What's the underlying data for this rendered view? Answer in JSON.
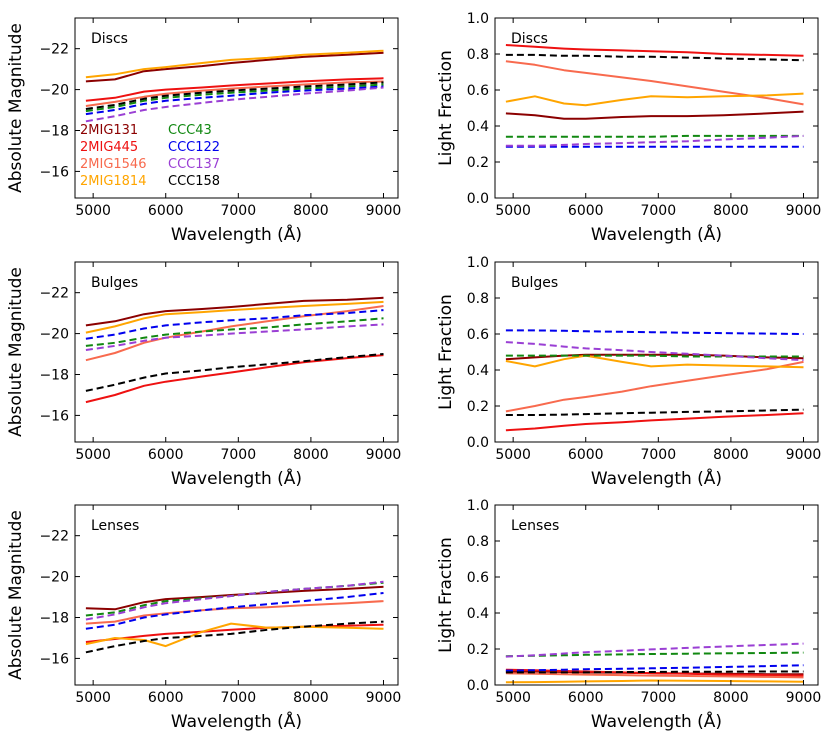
{
  "figure": {
    "xlabel": "Wavelength (Å)",
    "ylabel_magnitude": "Absolute Magnitude",
    "ylabel_fraction": "Light Fraction"
  },
  "legend": [
    {
      "name": "2MIG131",
      "color": "#8b0000",
      "dash": false
    },
    {
      "name": "2MIG445",
      "color": "#ee1111",
      "dash": false
    },
    {
      "name": "2MIG1546",
      "color": "#f86a4e",
      "dash": false
    },
    {
      "name": "2MIG1814",
      "color": "#ffa500",
      "dash": false
    },
    {
      "name": "CCC43",
      "color": "#118811",
      "dash": true
    },
    {
      "name": "CCC122",
      "color": "#0000ee",
      "dash": true
    },
    {
      "name": "CCC137",
      "color": "#9a3fd4",
      "dash": true
    },
    {
      "name": "CCC158",
      "color": "#000000",
      "dash": true
    }
  ],
  "chart_data": [
    {
      "id": "discs-magnitude",
      "type": "line",
      "title": "Discs",
      "xlabel": "Wavelength (Å)",
      "ylabel": "Absolute Magnitude",
      "xlim": [
        4750,
        9200
      ],
      "ylim": [
        -14.7,
        -23.5
      ],
      "y_inverted": true,
      "xticks": [
        5000,
        6000,
        7000,
        8000,
        9000
      ],
      "yticks": [
        -16,
        -18,
        -20,
        -22
      ],
      "x": [
        4900,
        5300,
        5700,
        6000,
        6500,
        6900,
        7400,
        7900,
        8500,
        9000
      ],
      "series": [
        {
          "name": "2MIG131",
          "values": [
            -20.4,
            -20.5,
            -20.9,
            -21.0,
            -21.15,
            -21.3,
            -21.45,
            -21.6,
            -21.7,
            -21.8
          ]
        },
        {
          "name": "2MIG445",
          "values": [
            -19.45,
            -19.6,
            -19.9,
            -20.0,
            -20.1,
            -20.2,
            -20.3,
            -20.4,
            -20.5,
            -20.55
          ]
        },
        {
          "name": "2MIG1546",
          "values": [
            -19.2,
            -19.4,
            -19.65,
            -19.8,
            -19.95,
            -20.05,
            -20.15,
            -20.25,
            -20.35,
            -20.4
          ]
        },
        {
          "name": "2MIG1814",
          "values": [
            -20.6,
            -20.75,
            -21.0,
            -21.1,
            -21.3,
            -21.45,
            -21.55,
            -21.7,
            -21.8,
            -21.9
          ]
        },
        {
          "name": "CCC43",
          "values": [
            -18.95,
            -19.15,
            -19.45,
            -19.6,
            -19.75,
            -19.85,
            -19.95,
            -20.05,
            -20.15,
            -20.25
          ]
        },
        {
          "name": "CCC122",
          "values": [
            -18.8,
            -19.0,
            -19.3,
            -19.45,
            -19.6,
            -19.7,
            -19.85,
            -19.95,
            -20.05,
            -20.15
          ]
        },
        {
          "name": "CCC137",
          "values": [
            -18.45,
            -18.7,
            -19.0,
            -19.15,
            -19.35,
            -19.5,
            -19.65,
            -19.8,
            -19.95,
            -20.1
          ]
        },
        {
          "name": "CCC158",
          "values": [
            -19.05,
            -19.25,
            -19.55,
            -19.7,
            -19.85,
            -19.95,
            -20.05,
            -20.15,
            -20.25,
            -20.35
          ]
        }
      ]
    },
    {
      "id": "discs-fraction",
      "type": "line",
      "title": "Discs",
      "xlabel": "Wavelength (Å)",
      "ylabel": "Light Fraction",
      "xlim": [
        4750,
        9200
      ],
      "ylim": [
        0,
        1.0
      ],
      "y_inverted": false,
      "xticks": [
        5000,
        6000,
        7000,
        8000,
        9000
      ],
      "yticks": [
        0.0,
        0.2,
        0.4,
        0.6,
        0.8,
        1.0
      ],
      "x": [
        4900,
        5300,
        5700,
        6000,
        6500,
        6900,
        7400,
        7900,
        8500,
        9000
      ],
      "series": [
        {
          "name": "2MIG131",
          "values": [
            0.47,
            0.46,
            0.44,
            0.44,
            0.45,
            0.455,
            0.455,
            0.46,
            0.47,
            0.48
          ]
        },
        {
          "name": "2MIG445",
          "values": [
            0.85,
            0.84,
            0.83,
            0.825,
            0.82,
            0.815,
            0.81,
            0.8,
            0.795,
            0.79
          ]
        },
        {
          "name": "2MIG1546",
          "values": [
            0.76,
            0.74,
            0.71,
            0.695,
            0.67,
            0.65,
            0.62,
            0.59,
            0.555,
            0.52
          ]
        },
        {
          "name": "2MIG1814",
          "values": [
            0.535,
            0.565,
            0.525,
            0.515,
            0.545,
            0.565,
            0.56,
            0.565,
            0.57,
            0.58
          ]
        },
        {
          "name": "CCC43",
          "values": [
            0.34,
            0.34,
            0.34,
            0.34,
            0.34,
            0.34,
            0.345,
            0.345,
            0.345,
            0.345
          ]
        },
        {
          "name": "CCC122",
          "values": [
            0.285,
            0.285,
            0.285,
            0.285,
            0.285,
            0.285,
            0.285,
            0.285,
            0.285,
            0.285
          ]
        },
        {
          "name": "CCC137",
          "values": [
            0.29,
            0.29,
            0.295,
            0.3,
            0.305,
            0.31,
            0.315,
            0.325,
            0.335,
            0.345
          ]
        },
        {
          "name": "CCC158",
          "values": [
            0.795,
            0.795,
            0.79,
            0.79,
            0.785,
            0.785,
            0.78,
            0.775,
            0.77,
            0.765
          ]
        }
      ]
    },
    {
      "id": "bulges-magnitude",
      "type": "line",
      "title": "Bulges",
      "xlabel": "Wavelength (Å)",
      "ylabel": "Absolute Magnitude",
      "xlim": [
        4750,
        9200
      ],
      "ylim": [
        -14.7,
        -23.5
      ],
      "y_inverted": true,
      "xticks": [
        5000,
        6000,
        7000,
        8000,
        9000
      ],
      "yticks": [
        -16,
        -18,
        -20,
        -22
      ],
      "x": [
        4900,
        5300,
        5700,
        6000,
        6500,
        6900,
        7400,
        7900,
        8500,
        9000
      ],
      "series": [
        {
          "name": "2MIG131",
          "values": [
            -20.4,
            -20.6,
            -20.95,
            -21.1,
            -21.2,
            -21.3,
            -21.45,
            -21.6,
            -21.65,
            -21.75
          ]
        },
        {
          "name": "2MIG445",
          "values": [
            -16.65,
            -17.0,
            -17.45,
            -17.65,
            -17.9,
            -18.1,
            -18.35,
            -18.6,
            -18.8,
            -18.95
          ]
        },
        {
          "name": "2MIG1546",
          "values": [
            -18.7,
            -19.05,
            -19.55,
            -19.8,
            -20.1,
            -20.35,
            -20.6,
            -20.85,
            -21.1,
            -21.35
          ]
        },
        {
          "name": "2MIG1814",
          "values": [
            -20.05,
            -20.35,
            -20.75,
            -20.95,
            -21.05,
            -21.15,
            -21.25,
            -21.35,
            -21.45,
            -21.55
          ]
        },
        {
          "name": "CCC43",
          "values": [
            -19.4,
            -19.55,
            -19.8,
            -19.95,
            -20.1,
            -20.2,
            -20.3,
            -20.45,
            -20.6,
            -20.75
          ]
        },
        {
          "name": "CCC122",
          "values": [
            -19.75,
            -19.95,
            -20.25,
            -20.4,
            -20.55,
            -20.65,
            -20.75,
            -20.9,
            -21.0,
            -21.15
          ]
        },
        {
          "name": "CCC137",
          "values": [
            -19.2,
            -19.4,
            -19.65,
            -19.8,
            -19.9,
            -20.0,
            -20.1,
            -20.2,
            -20.35,
            -20.45
          ]
        },
        {
          "name": "CCC158",
          "values": [
            -17.2,
            -17.5,
            -17.85,
            -18.05,
            -18.2,
            -18.35,
            -18.5,
            -18.65,
            -18.85,
            -19.0
          ]
        }
      ]
    },
    {
      "id": "bulges-fraction",
      "type": "line",
      "title": "Bulges",
      "xlabel": "Wavelength (Å)",
      "ylabel": "Light Fraction",
      "xlim": [
        4750,
        9200
      ],
      "ylim": [
        0,
        1.0
      ],
      "y_inverted": false,
      "xticks": [
        5000,
        6000,
        7000,
        8000,
        9000
      ],
      "yticks": [
        0.0,
        0.2,
        0.4,
        0.6,
        0.8,
        1.0
      ],
      "x": [
        4900,
        5300,
        5700,
        6000,
        6500,
        6900,
        7400,
        7900,
        8500,
        9000
      ],
      "series": [
        {
          "name": "2MIG131",
          "values": [
            0.46,
            0.47,
            0.48,
            0.485,
            0.485,
            0.485,
            0.485,
            0.48,
            0.47,
            0.465
          ]
        },
        {
          "name": "2MIG445",
          "values": [
            0.065,
            0.075,
            0.09,
            0.1,
            0.11,
            0.12,
            0.13,
            0.14,
            0.15,
            0.16
          ]
        },
        {
          "name": "2MIG1546",
          "values": [
            0.17,
            0.2,
            0.235,
            0.25,
            0.28,
            0.31,
            0.34,
            0.37,
            0.405,
            0.445
          ]
        },
        {
          "name": "2MIG1814",
          "values": [
            0.45,
            0.42,
            0.46,
            0.48,
            0.445,
            0.42,
            0.43,
            0.425,
            0.42,
            0.415
          ]
        },
        {
          "name": "CCC43",
          "values": [
            0.48,
            0.48,
            0.48,
            0.48,
            0.48,
            0.48,
            0.475,
            0.475,
            0.475,
            0.475
          ]
        },
        {
          "name": "CCC122",
          "values": [
            0.62,
            0.62,
            0.618,
            0.615,
            0.612,
            0.61,
            0.607,
            0.605,
            0.602,
            0.6
          ]
        },
        {
          "name": "CCC137",
          "values": [
            0.555,
            0.545,
            0.53,
            0.52,
            0.51,
            0.5,
            0.49,
            0.48,
            0.465,
            0.455
          ]
        },
        {
          "name": "CCC158",
          "values": [
            0.15,
            0.15,
            0.152,
            0.155,
            0.16,
            0.163,
            0.167,
            0.17,
            0.175,
            0.18
          ]
        }
      ]
    },
    {
      "id": "lenses-magnitude",
      "type": "line",
      "title": "Lenses",
      "xlabel": "Wavelength (Å)",
      "ylabel": "Absolute Magnitude",
      "xlim": [
        4750,
        9200
      ],
      "ylim": [
        -14.7,
        -23.5
      ],
      "y_inverted": true,
      "xticks": [
        5000,
        6000,
        7000,
        8000,
        9000
      ],
      "yticks": [
        -16,
        -18,
        -20,
        -22
      ],
      "x": [
        4900,
        5300,
        5700,
        6000,
        6500,
        6900,
        7400,
        7900,
        8500,
        9000
      ],
      "series": [
        {
          "name": "2MIG131",
          "values": [
            -18.45,
            -18.4,
            -18.75,
            -18.9,
            -19.0,
            -19.1,
            -19.2,
            -19.3,
            -19.4,
            -19.5
          ]
        },
        {
          "name": "2MIG445",
          "values": [
            -16.8,
            -16.95,
            -17.1,
            -17.2,
            -17.3,
            -17.4,
            -17.5,
            -17.55,
            -17.6,
            -17.65
          ]
        },
        {
          "name": "2MIG1546",
          "values": [
            -17.7,
            -17.8,
            -18.1,
            -18.2,
            -18.35,
            -18.45,
            -18.5,
            -18.6,
            -18.7,
            -18.8
          ]
        },
        {
          "name": "2MIG1814",
          "values": [
            -16.7,
            -17.0,
            -16.9,
            -16.6,
            -17.3,
            -17.7,
            -17.5,
            -17.55,
            -17.5,
            -17.45
          ]
        },
        {
          "name": "CCC43",
          "values": [
            -18.1,
            -18.25,
            -18.6,
            -18.8,
            -18.95,
            -19.05,
            -19.25,
            -19.4,
            -19.55,
            -19.7
          ]
        },
        {
          "name": "CCC122",
          "values": [
            -17.45,
            -17.65,
            -18.0,
            -18.15,
            -18.35,
            -18.5,
            -18.65,
            -18.8,
            -19.0,
            -19.2
          ]
        },
        {
          "name": "CCC137",
          "values": [
            -17.9,
            -18.15,
            -18.5,
            -18.7,
            -18.9,
            -19.05,
            -19.25,
            -19.4,
            -19.55,
            -19.75
          ]
        },
        {
          "name": "CCC158",
          "values": [
            -16.3,
            -16.6,
            -16.85,
            -17.0,
            -17.1,
            -17.2,
            -17.4,
            -17.55,
            -17.7,
            -17.8
          ]
        }
      ]
    },
    {
      "id": "lenses-fraction",
      "type": "line",
      "title": "Lenses",
      "xlabel": "Wavelength (Å)",
      "ylabel": "Light Fraction",
      "xlim": [
        4750,
        9200
      ],
      "ylim": [
        0,
        1.0
      ],
      "y_inverted": false,
      "xticks": [
        5000,
        6000,
        7000,
        8000,
        9000
      ],
      "yticks": [
        0.0,
        0.2,
        0.4,
        0.6,
        0.8,
        1.0
      ],
      "x": [
        4900,
        5300,
        5700,
        6000,
        6500,
        6900,
        7400,
        7900,
        8500,
        9000
      ],
      "series": [
        {
          "name": "2MIG131",
          "values": [
            0.075,
            0.075,
            0.072,
            0.07,
            0.068,
            0.066,
            0.064,
            0.062,
            0.06,
            0.06
          ]
        },
        {
          "name": "2MIG445",
          "values": [
            0.085,
            0.082,
            0.078,
            0.075,
            0.07,
            0.066,
            0.062,
            0.058,
            0.055,
            0.052
          ]
        },
        {
          "name": "2MIG1546",
          "values": [
            0.065,
            0.063,
            0.06,
            0.058,
            0.055,
            0.052,
            0.05,
            0.048,
            0.045,
            0.042
          ]
        },
        {
          "name": "2MIG1814",
          "values": [
            0.015,
            0.016,
            0.018,
            0.02,
            0.022,
            0.025,
            0.024,
            0.022,
            0.02,
            0.018
          ]
        },
        {
          "name": "CCC43",
          "values": [
            0.16,
            0.162,
            0.165,
            0.168,
            0.17,
            0.172,
            0.174,
            0.176,
            0.178,
            0.18
          ]
        },
        {
          "name": "CCC122",
          "values": [
            0.08,
            0.082,
            0.085,
            0.088,
            0.09,
            0.093,
            0.096,
            0.1,
            0.105,
            0.11
          ]
        },
        {
          "name": "CCC137",
          "values": [
            0.158,
            0.165,
            0.175,
            0.182,
            0.19,
            0.198,
            0.206,
            0.214,
            0.222,
            0.23
          ]
        },
        {
          "name": "CCC158",
          "values": [
            0.07,
            0.07,
            0.07,
            0.07,
            0.072,
            0.072,
            0.074,
            0.074,
            0.075,
            0.075
          ]
        }
      ]
    }
  ]
}
